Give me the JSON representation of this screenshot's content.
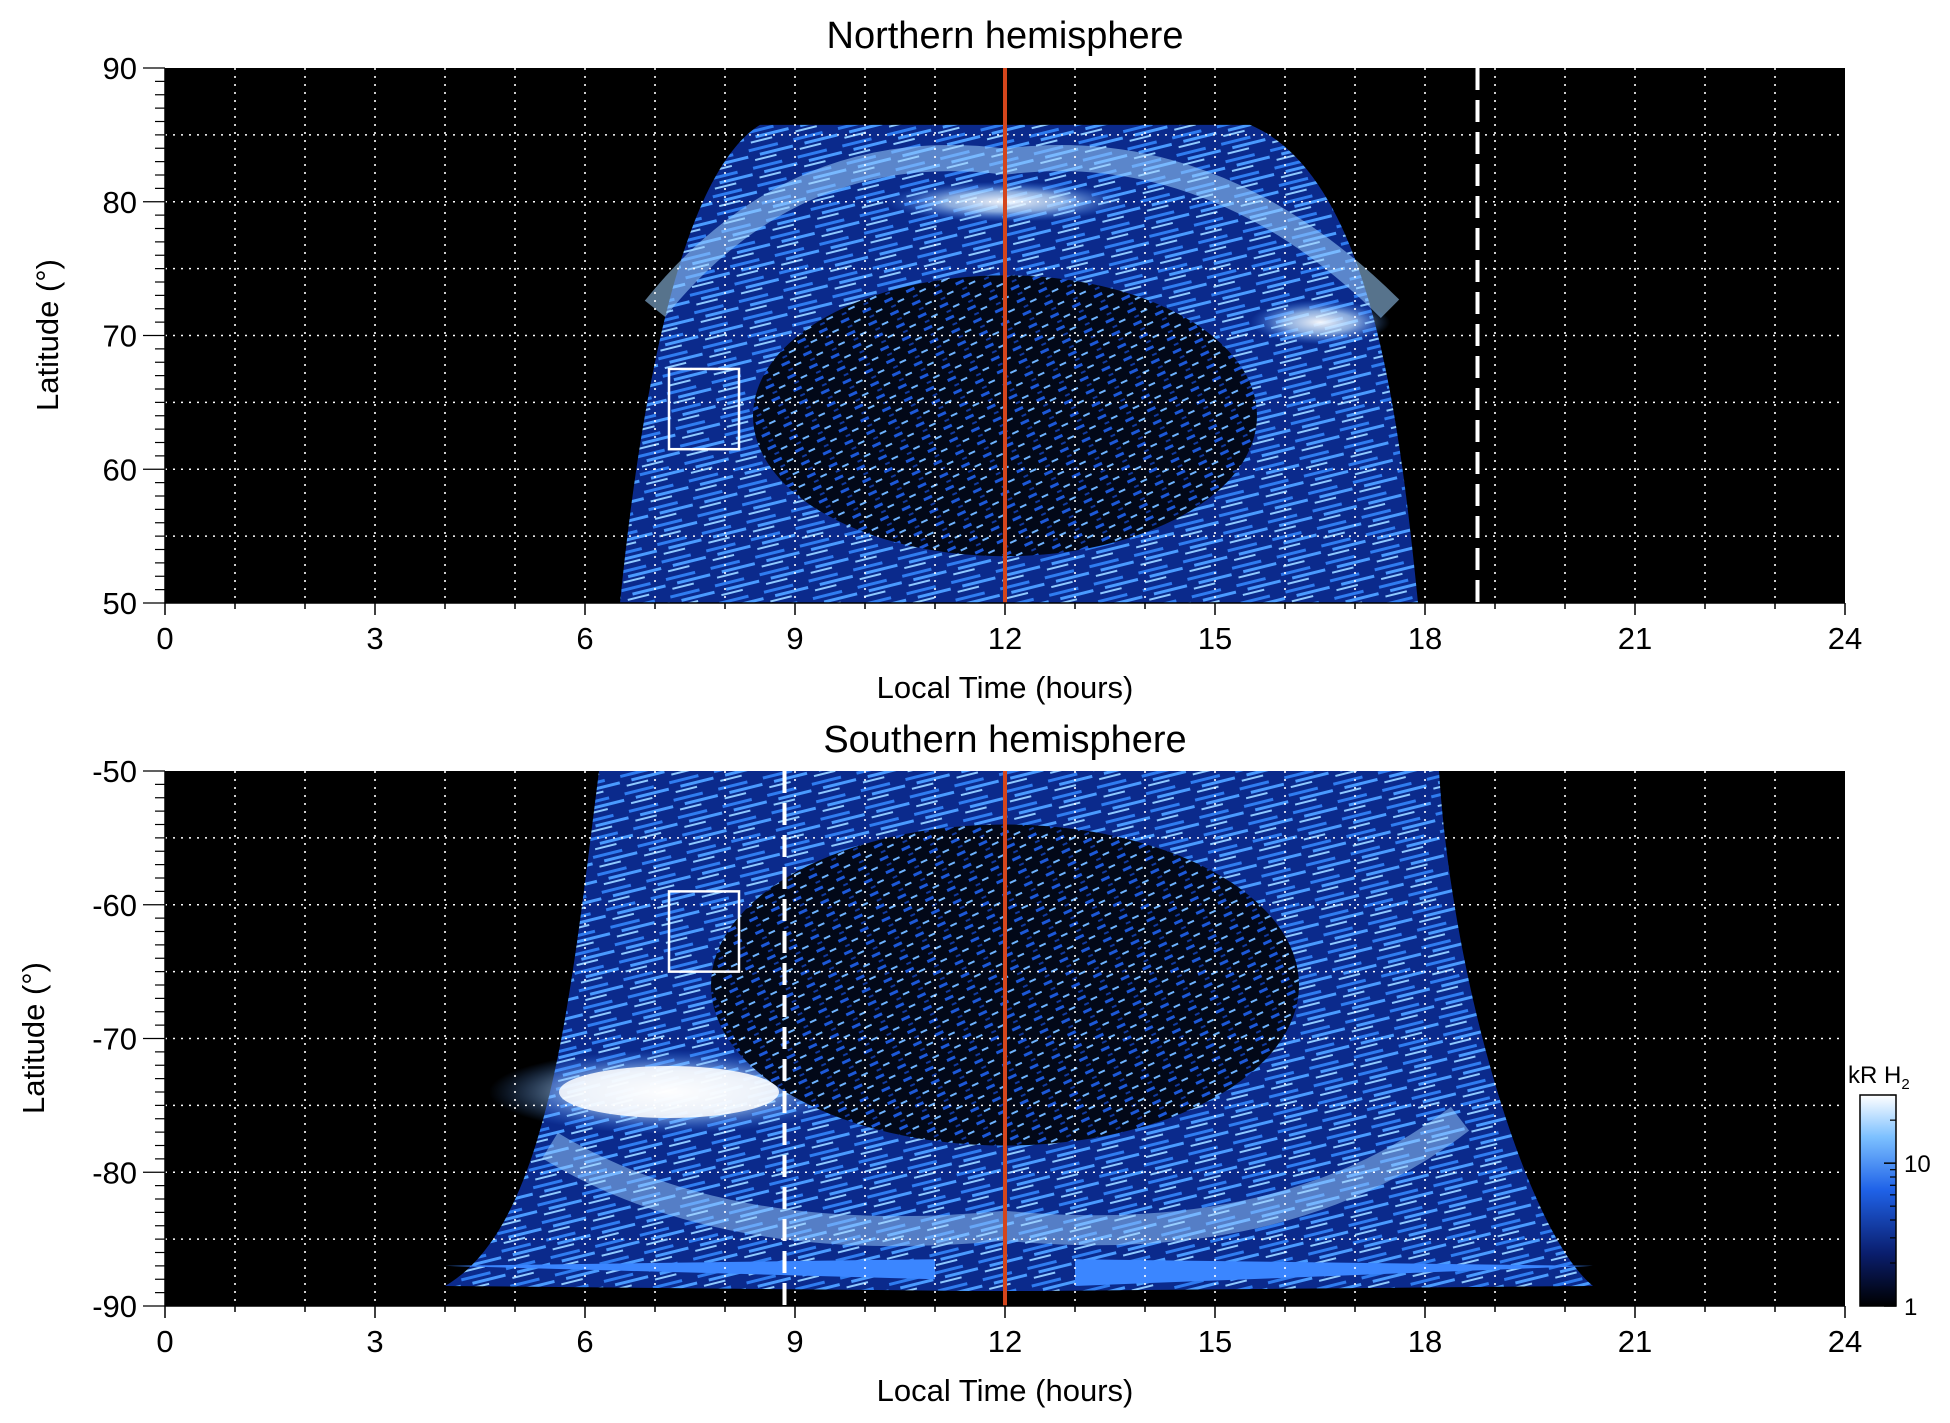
{
  "chart_data": [
    {
      "type": "heatmap",
      "title": "Northern hemisphere",
      "xlabel": "Local Time (hours)",
      "ylabel": "Latitude (°)",
      "xlim": [
        0,
        24
      ],
      "ylim": [
        50,
        90
      ],
      "x_ticks": [
        0,
        3,
        6,
        9,
        12,
        15,
        18,
        21,
        24
      ],
      "y_ticks": [
        50,
        60,
        70,
        80,
        90
      ],
      "x_gridlines": [
        1,
        2,
        3,
        4,
        5,
        6,
        7,
        8,
        9,
        10,
        11,
        12,
        13,
        14,
        15,
        16,
        17,
        18,
        19,
        20,
        21,
        22,
        23
      ],
      "y_gridlines": [
        55,
        60,
        65,
        70,
        75,
        80,
        85
      ],
      "grid": "dotted white",
      "noon_line": {
        "x": 12,
        "color": "#d4451c"
      },
      "dashed_line": {
        "x": 18.75,
        "color": "#ffffff"
      },
      "box": {
        "x": [
          7.2,
          8.2
        ],
        "y": [
          61.5,
          67.5
        ]
      },
      "emission": {
        "x_range": [
          6.5,
          17.9
        ],
        "y_top": 86.5,
        "auroral_oval": {
          "center_x": 12.0,
          "center_y": 64,
          "rx": 3.6,
          "ry": 10.5
        }
      }
    },
    {
      "type": "heatmap",
      "title": "Southern hemisphere",
      "xlabel": "Local Time (hours)",
      "ylabel": "Latitude (°)",
      "xlim": [
        0,
        24
      ],
      "ylim": [
        -90,
        -50
      ],
      "x_ticks": [
        0,
        3,
        6,
        9,
        12,
        15,
        18,
        21,
        24
      ],
      "y_ticks": [
        -90,
        -80,
        -70,
        -60,
        -50
      ],
      "x_gridlines": [
        1,
        2,
        3,
        4,
        5,
        6,
        7,
        8,
        9,
        10,
        11,
        12,
        13,
        14,
        15,
        16,
        17,
        18,
        19,
        20,
        21,
        22,
        23
      ],
      "y_gridlines": [
        -85,
        -80,
        -75,
        -70,
        -65,
        -60,
        -55
      ],
      "grid": "dotted white",
      "noon_line": {
        "x": 12,
        "color": "#d4451c"
      },
      "dashed_line": {
        "x": 8.85,
        "color": "#ffffff"
      },
      "box": {
        "x": [
          7.2,
          8.2
        ],
        "y": [
          -65,
          -59
        ]
      },
      "emission": {
        "x_range": [
          4.0,
          20.4
        ],
        "y_bottom": -88.5,
        "auroral_oval": {
          "center_x": 12.0,
          "center_y": -66,
          "rx": 4.2,
          "ry": 12
        }
      }
    }
  ],
  "colorbar": {
    "label": "kR H",
    "label_subscript": "2",
    "scale": "log",
    "range": [
      1,
      30
    ],
    "ticks": [
      "10",
      "1"
    ],
    "colors": [
      "#000000",
      "#0a1e6e",
      "#1f62e8",
      "#7cc0ff",
      "#ffffff"
    ]
  }
}
